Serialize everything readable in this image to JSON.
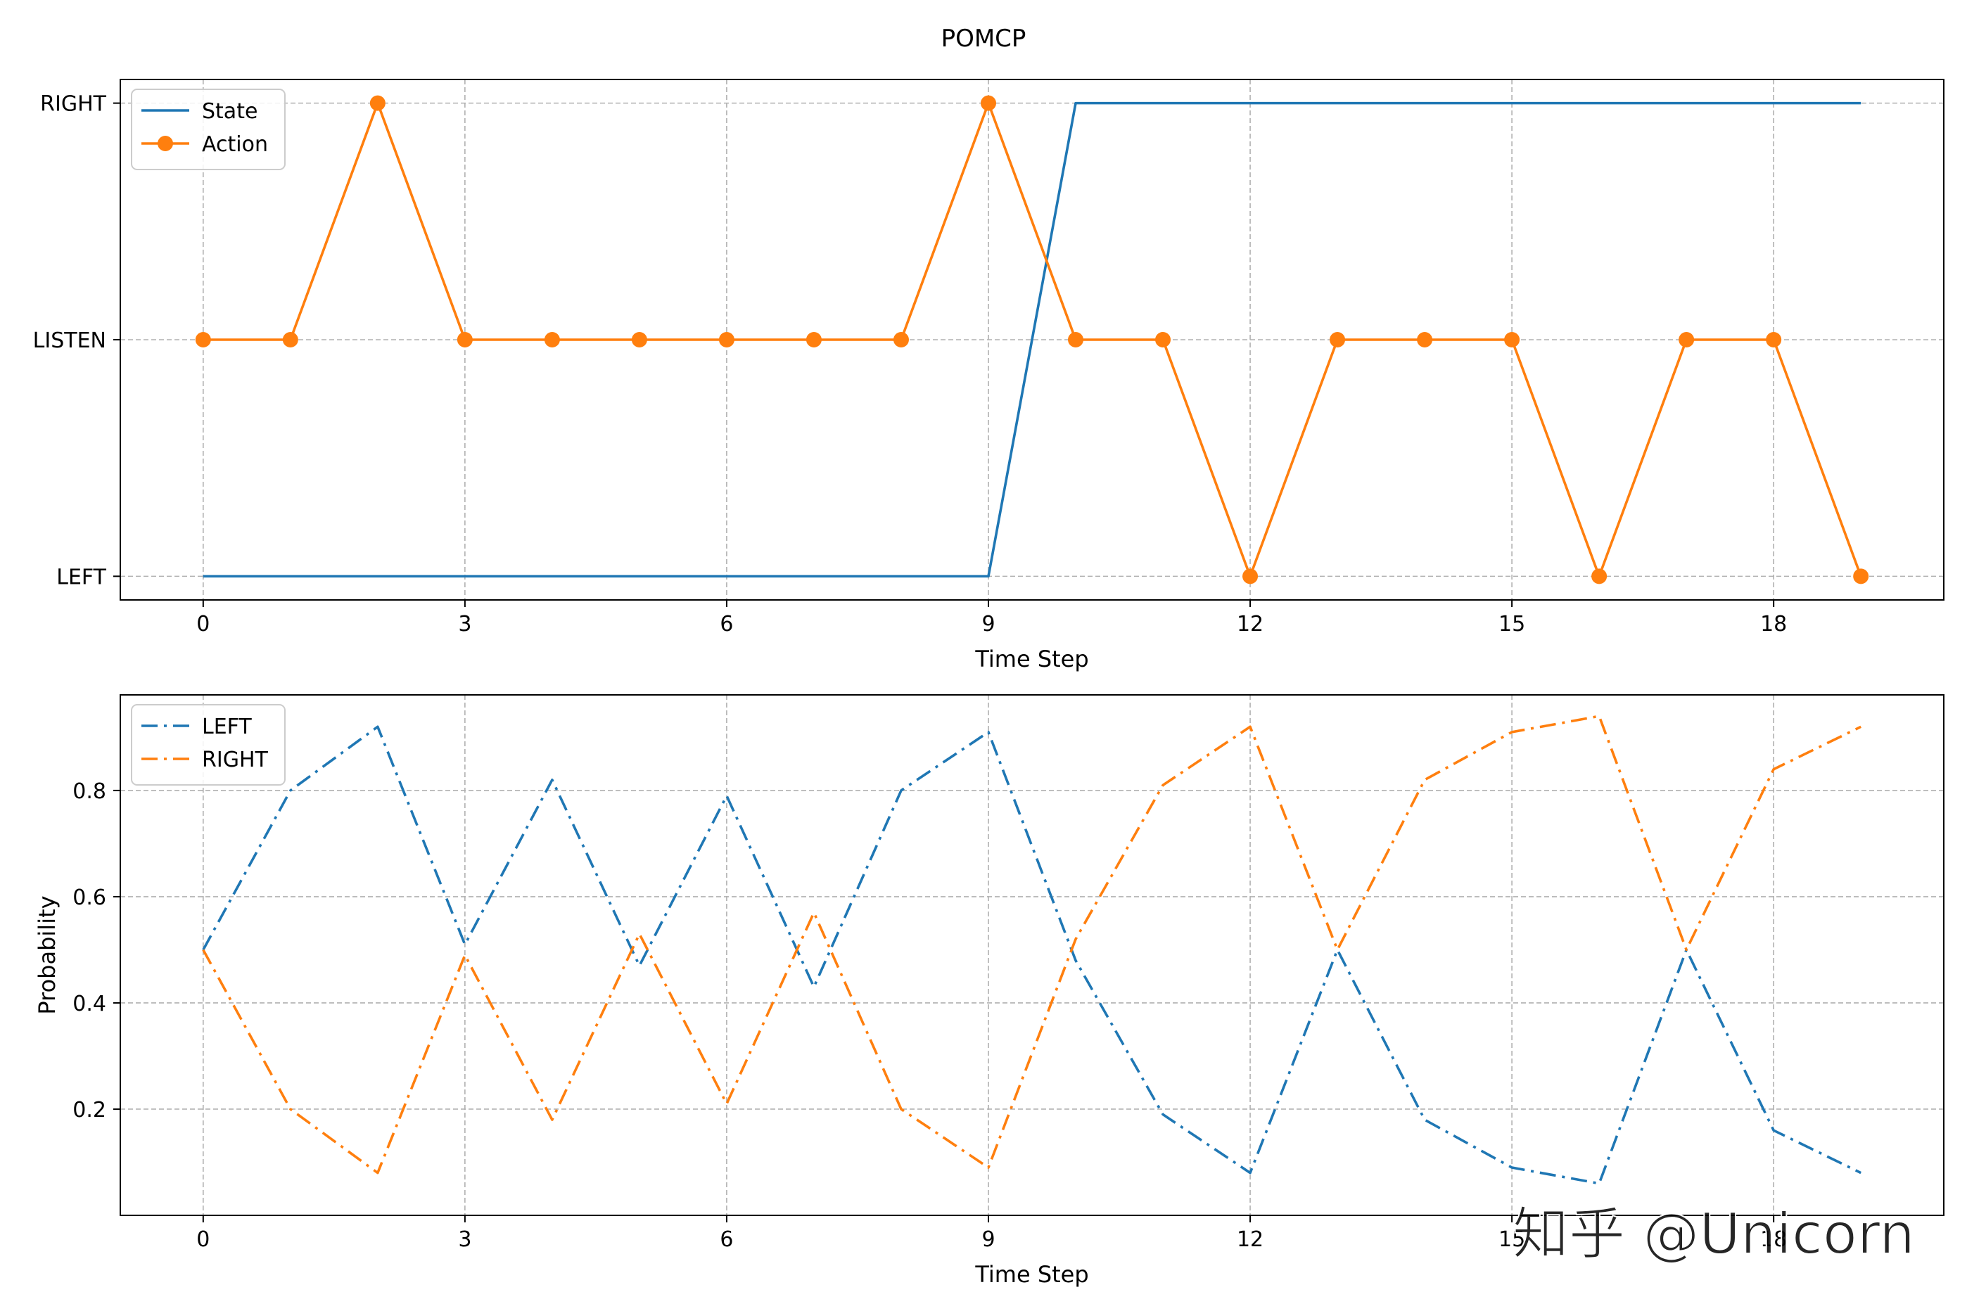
{
  "figure": {
    "title": "POMCP",
    "watermark": "知乎 @Unicorn"
  },
  "colors": {
    "blue": "#1f77b4",
    "orange": "#ff7f0e",
    "grid": "#b0b0b0"
  },
  "chart_data": [
    {
      "type": "line",
      "xlabel": "Time Step",
      "ylabel": "",
      "xlim": [
        -0.95,
        19.95
      ],
      "ylim": [
        -0.1,
        2.1
      ],
      "xticks": [
        0,
        3,
        6,
        9,
        12,
        15,
        18
      ],
      "yticks": [
        0,
        1,
        2
      ],
      "ytick_labels": [
        "LEFT",
        "LISTEN",
        "RIGHT"
      ],
      "grid": true,
      "legend": "top-left",
      "x": [
        0,
        1,
        2,
        3,
        4,
        5,
        6,
        7,
        8,
        9,
        10,
        11,
        12,
        13,
        14,
        15,
        16,
        17,
        18,
        19
      ],
      "series": [
        {
          "name": "State",
          "color": "#1f77b4",
          "style": "solid",
          "marker": false,
          "values": [
            0,
            0,
            0,
            0,
            0,
            0,
            0,
            0,
            0,
            0,
            2,
            2,
            2,
            2,
            2,
            2,
            2,
            2,
            2,
            2
          ]
        },
        {
          "name": "Action",
          "color": "#ff7f0e",
          "style": "solid",
          "marker": true,
          "values": [
            1,
            1,
            2,
            1,
            1,
            1,
            1,
            1,
            1,
            2,
            1,
            1,
            0,
            1,
            1,
            1,
            0,
            1,
            1,
            0
          ]
        }
      ]
    },
    {
      "type": "line",
      "xlabel": "Time Step",
      "ylabel": "Probability",
      "xlim": [
        -0.95,
        19.95
      ],
      "ylim": [
        0.0,
        0.98
      ],
      "xticks": [
        0,
        3,
        6,
        9,
        12,
        15,
        18
      ],
      "yticks": [
        0.2,
        0.4,
        0.6,
        0.8
      ],
      "ytick_labels": [
        "0.2",
        "0.4",
        "0.6",
        "0.8"
      ],
      "grid": true,
      "legend": "top-left",
      "x": [
        0,
        1,
        2,
        3,
        4,
        5,
        6,
        7,
        8,
        9,
        10,
        11,
        12,
        13,
        14,
        15,
        16,
        17,
        18,
        19
      ],
      "series": [
        {
          "name": "LEFT",
          "color": "#1f77b4",
          "style": "dashdot",
          "marker": false,
          "values": [
            0.5,
            0.8,
            0.92,
            0.51,
            0.82,
            0.47,
            0.79,
            0.43,
            0.8,
            0.91,
            0.48,
            0.19,
            0.08,
            0.5,
            0.18,
            0.09,
            0.06,
            0.5,
            0.16,
            0.08
          ]
        },
        {
          "name": "RIGHT",
          "color": "#ff7f0e",
          "style": "dashdot",
          "marker": false,
          "values": [
            0.5,
            0.2,
            0.08,
            0.49,
            0.18,
            0.53,
            0.21,
            0.57,
            0.2,
            0.09,
            0.52,
            0.81,
            0.92,
            0.5,
            0.82,
            0.91,
            0.94,
            0.5,
            0.84,
            0.92
          ]
        }
      ]
    }
  ]
}
